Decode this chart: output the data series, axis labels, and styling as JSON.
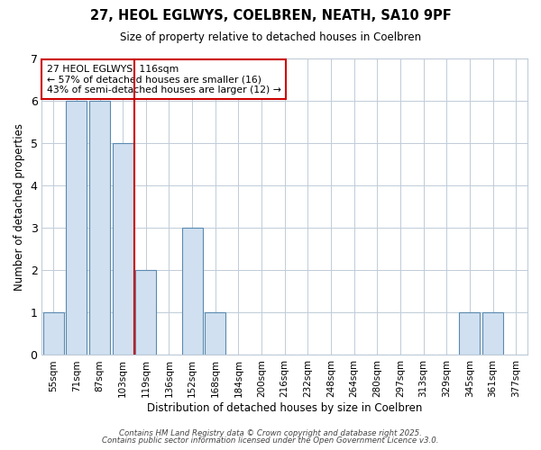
{
  "title1": "27, HEOL EGLWYS, COELBREN, NEATH, SA10 9PF",
  "title2": "Size of property relative to detached houses in Coelbren",
  "xlabel": "Distribution of detached houses by size in Coelbren",
  "ylabel": "Number of detached properties",
  "categories": [
    "55sqm",
    "71sqm",
    "87sqm",
    "103sqm",
    "119sqm",
    "136sqm",
    "152sqm",
    "168sqm",
    "184sqm",
    "200sqm",
    "216sqm",
    "232sqm",
    "248sqm",
    "264sqm",
    "280sqm",
    "297sqm",
    "313sqm",
    "329sqm",
    "345sqm",
    "361sqm",
    "377sqm"
  ],
  "values": [
    1,
    6,
    6,
    5,
    2,
    0,
    3,
    1,
    0,
    0,
    0,
    0,
    0,
    0,
    0,
    0,
    0,
    0,
    1,
    1,
    0
  ],
  "bar_color": "#d0e0f0",
  "bar_edge_color": "#5a8ab0",
  "red_line_x": 3.5,
  "red_line_color": "#cc0000",
  "annotation_text": "27 HEOL EGLWYS: 116sqm\n← 57% of detached houses are smaller (16)\n43% of semi-detached houses are larger (12) →",
  "annotation_box_color": "#ffffff",
  "annotation_box_edge": "#cc0000",
  "ylim": [
    0,
    7
  ],
  "yticks": [
    0,
    1,
    2,
    3,
    4,
    5,
    6,
    7
  ],
  "footer1": "Contains HM Land Registry data © Crown copyright and database right 2025.",
  "footer2": "Contains public sector information licensed under the Open Government Licence v3.0.",
  "plot_bg_color": "#ffffff",
  "fig_bg_color": "#ffffff",
  "grid_color": "#c0ccd8"
}
